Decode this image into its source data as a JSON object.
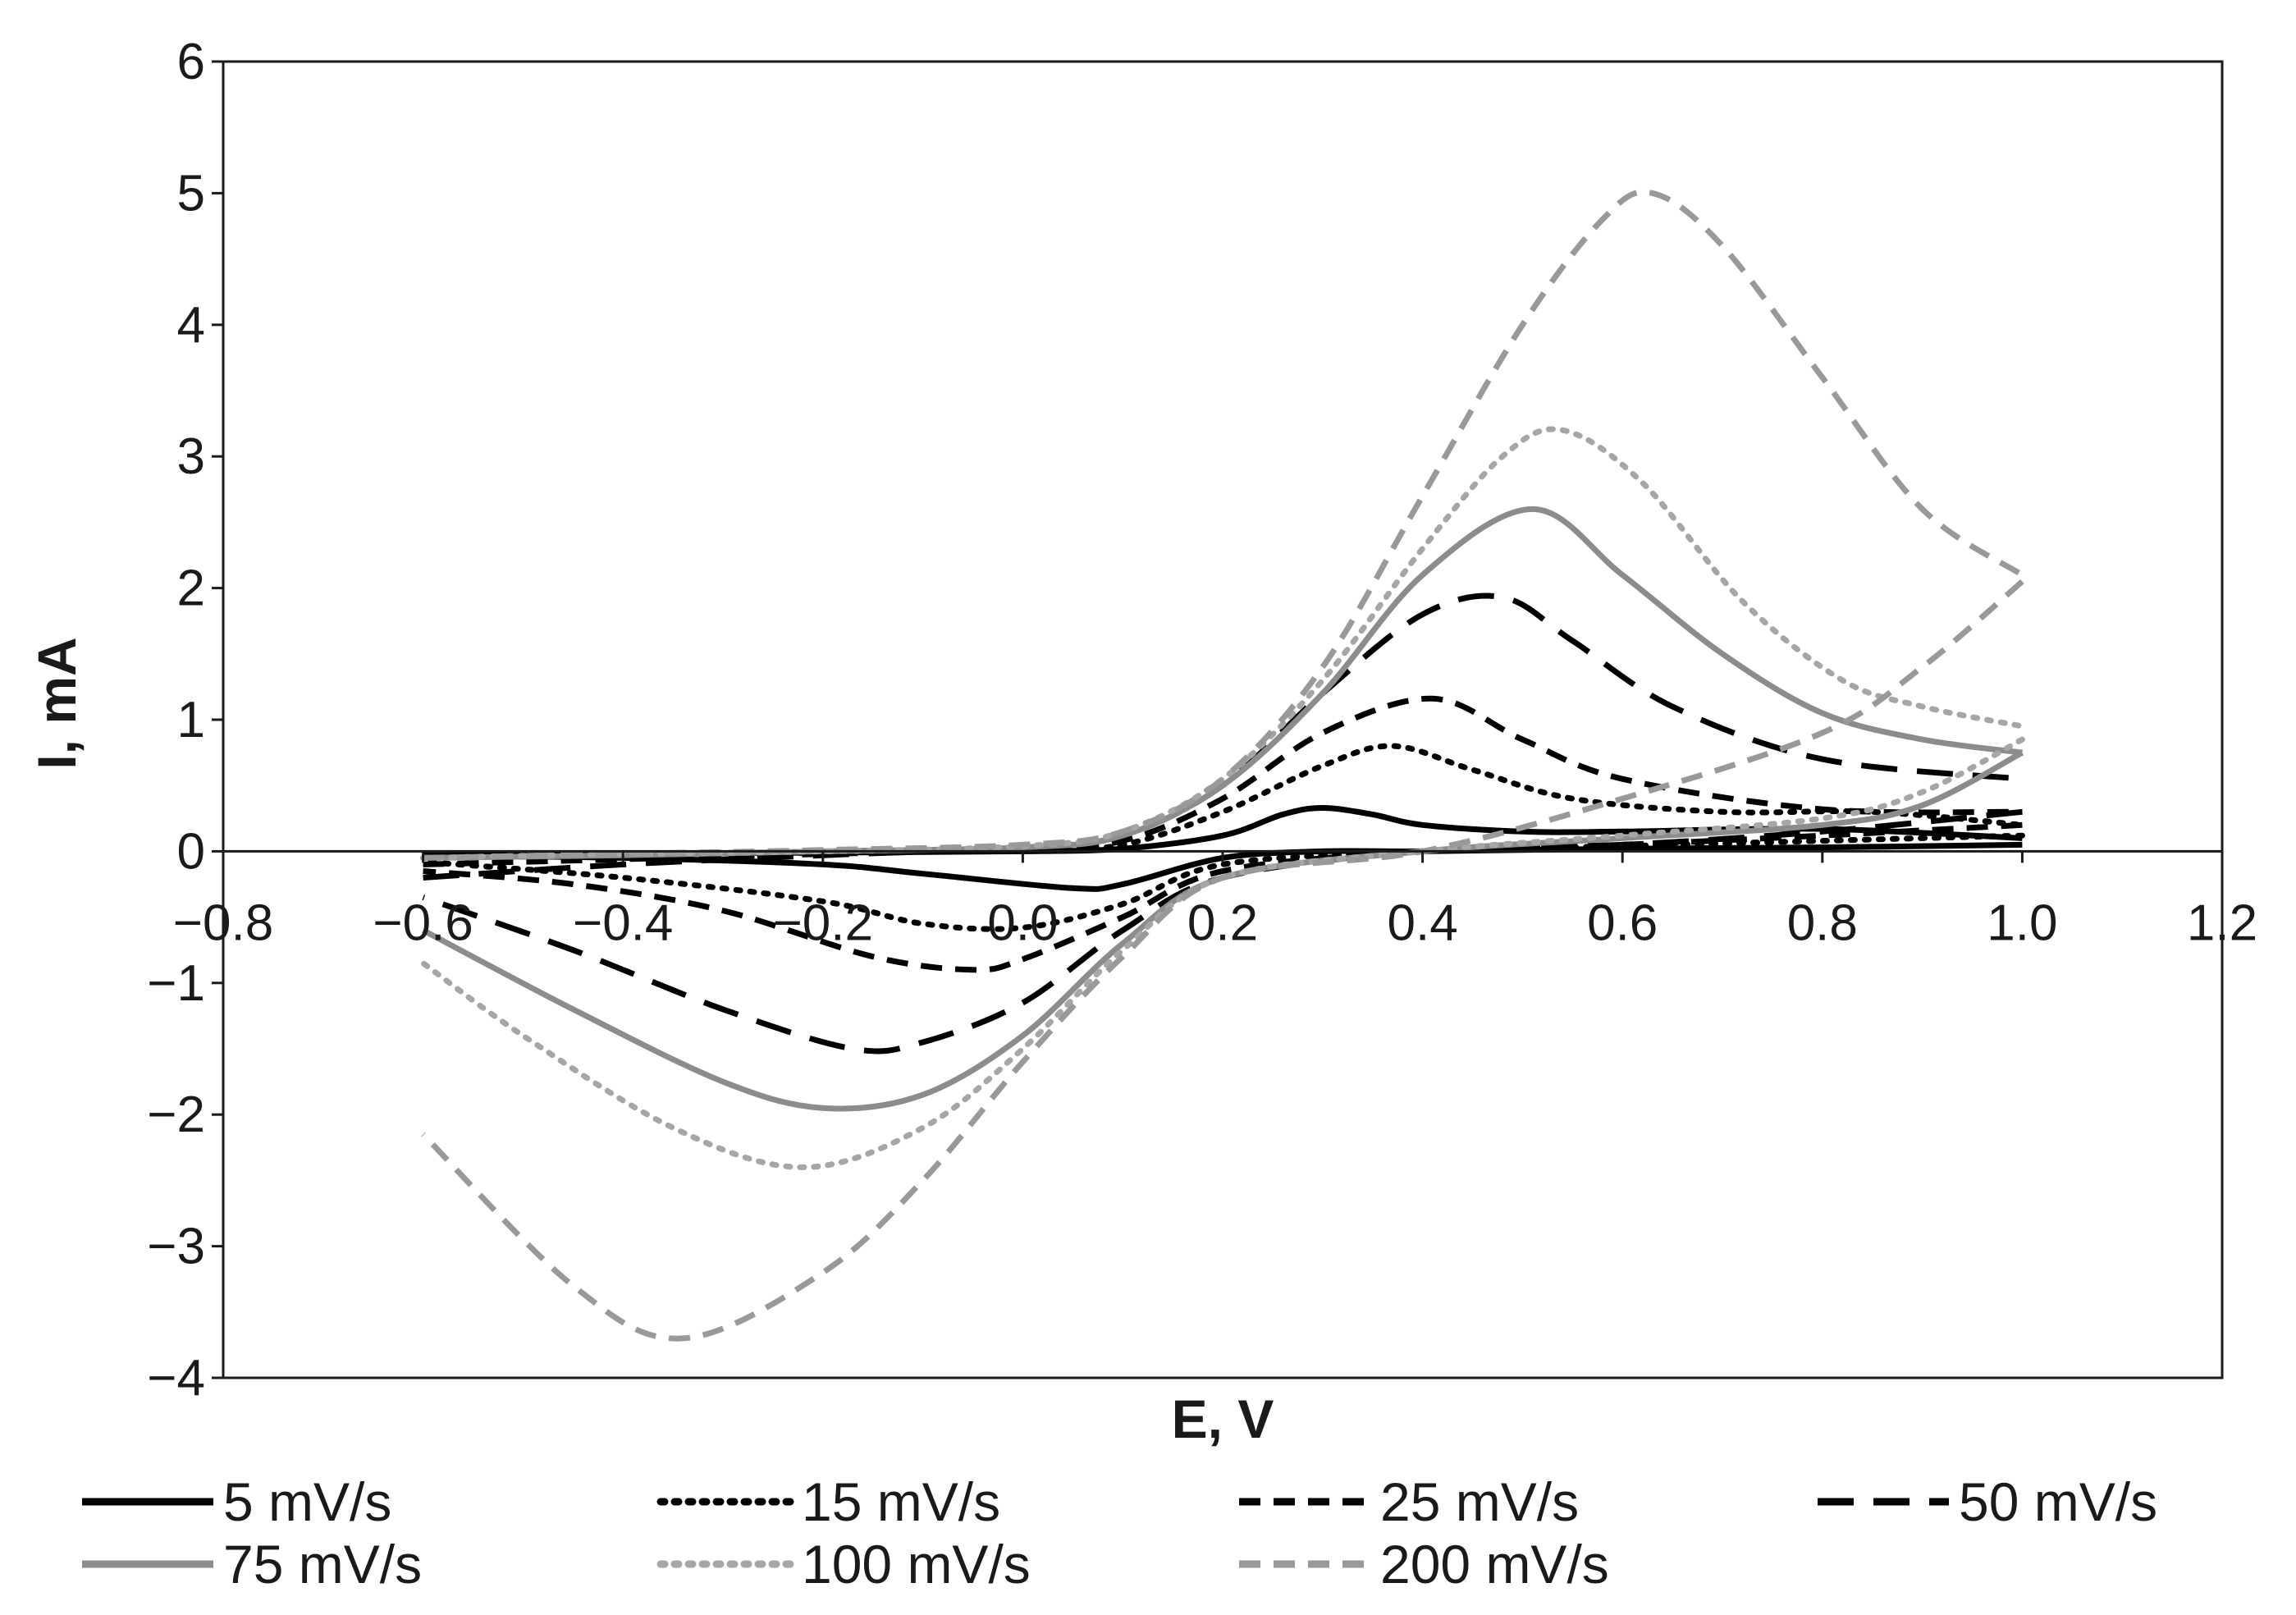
{
  "chart_data": {
    "type": "line",
    "title": "",
    "xlabel": "E, V",
    "ylabel": "I, mA",
    "xlim": [
      -0.8,
      1.2
    ],
    "ylim": [
      -4,
      6
    ],
    "xticks": [
      -0.8,
      -0.6,
      -0.4,
      -0.2,
      0.0,
      0.2,
      0.4,
      0.6,
      0.8,
      1.0,
      1.2
    ],
    "xtick_labels": [
      "−0.8",
      "−0.6",
      "−0.4",
      "−0.2",
      "0.0",
      "0.2",
      "0.4",
      "0.6",
      "0.8",
      "1.0",
      "1.2"
    ],
    "yticks": [
      -4,
      -3,
      -2,
      -1,
      0,
      1,
      2,
      3,
      4,
      5,
      6
    ],
    "ytick_labels": [
      "−4",
      "−3",
      "−2",
      "−1",
      "0",
      "1",
      "2",
      "3",
      "4",
      "5",
      "6"
    ],
    "grid": false,
    "legend_position": "bottom",
    "series": [
      {
        "name": "5 mV/s",
        "color": "#000000",
        "dash": "solid",
        "anodic": [
          [
            -0.6,
            -0.03
          ],
          [
            -0.4,
            -0.02
          ],
          [
            -0.2,
            -0.01
          ],
          [
            0.0,
            0.0
          ],
          [
            0.1,
            0.02
          ],
          [
            0.2,
            0.12
          ],
          [
            0.26,
            0.28
          ],
          [
            0.3,
            0.33
          ],
          [
            0.35,
            0.28
          ],
          [
            0.4,
            0.2
          ],
          [
            0.5,
            0.15
          ],
          [
            0.6,
            0.15
          ],
          [
            0.8,
            0.17
          ],
          [
            1.0,
            0.1
          ]
        ],
        "cathodic": [
          [
            1.0,
            0.05
          ],
          [
            0.8,
            0.03
          ],
          [
            0.6,
            0.02
          ],
          [
            0.4,
            0.0
          ],
          [
            0.3,
            0.0
          ],
          [
            0.2,
            -0.05
          ],
          [
            0.1,
            -0.25
          ],
          [
            0.05,
            -0.28
          ],
          [
            -0.1,
            -0.17
          ],
          [
            -0.2,
            -0.1
          ],
          [
            -0.4,
            -0.05
          ],
          [
            -0.6,
            -0.03
          ]
        ]
      },
      {
        "name": "15 mV/s",
        "color": "#000000",
        "dash": "dot",
        "anodic": [
          [
            -0.6,
            -0.05
          ],
          [
            -0.4,
            -0.03
          ],
          [
            -0.2,
            -0.01
          ],
          [
            0.0,
            0.01
          ],
          [
            0.1,
            0.05
          ],
          [
            0.2,
            0.3
          ],
          [
            0.3,
            0.65
          ],
          [
            0.37,
            0.8
          ],
          [
            0.45,
            0.62
          ],
          [
            0.55,
            0.4
          ],
          [
            0.7,
            0.3
          ],
          [
            0.85,
            0.3
          ],
          [
            1.0,
            0.2
          ]
        ],
        "cathodic": [
          [
            1.0,
            0.12
          ],
          [
            0.8,
            0.08
          ],
          [
            0.6,
            0.04
          ],
          [
            0.4,
            0.0
          ],
          [
            0.2,
            -0.1
          ],
          [
            0.1,
            -0.4
          ],
          [
            0.0,
            -0.58
          ],
          [
            -0.1,
            -0.55
          ],
          [
            -0.2,
            -0.38
          ],
          [
            -0.4,
            -0.2
          ],
          [
            -0.6,
            -0.08
          ]
        ]
      },
      {
        "name": "25 mV/s",
        "color": "#000000",
        "dash": "dash",
        "anodic": [
          [
            -0.6,
            -0.1
          ],
          [
            -0.4,
            -0.06
          ],
          [
            -0.2,
            -0.02
          ],
          [
            0.0,
            0.02
          ],
          [
            0.1,
            0.08
          ],
          [
            0.2,
            0.4
          ],
          [
            0.3,
            0.9
          ],
          [
            0.41,
            1.16
          ],
          [
            0.5,
            0.85
          ],
          [
            0.6,
            0.55
          ],
          [
            0.8,
            0.32
          ],
          [
            1.0,
            0.3
          ]
        ],
        "cathodic": [
          [
            1.0,
            0.2
          ],
          [
            0.8,
            0.12
          ],
          [
            0.6,
            0.05
          ],
          [
            0.4,
            0.0
          ],
          [
            0.2,
            -0.15
          ],
          [
            0.1,
            -0.5
          ],
          [
            0.0,
            -0.82
          ],
          [
            -0.05,
            -0.9
          ],
          [
            -0.15,
            -0.8
          ],
          [
            -0.3,
            -0.45
          ],
          [
            -0.45,
            -0.25
          ],
          [
            -0.6,
            -0.15
          ]
        ]
      },
      {
        "name": "50 mV/s",
        "color": "#000000",
        "dash": "longdash",
        "anodic": [
          [
            -0.6,
            -0.2
          ],
          [
            -0.4,
            -0.1
          ],
          [
            -0.2,
            -0.03
          ],
          [
            0.0,
            0.03
          ],
          [
            0.1,
            0.12
          ],
          [
            0.2,
            0.5
          ],
          [
            0.3,
            1.2
          ],
          [
            0.4,
            1.8
          ],
          [
            0.48,
            1.93
          ],
          [
            0.55,
            1.6
          ],
          [
            0.65,
            1.1
          ],
          [
            0.8,
            0.7
          ],
          [
            1.0,
            0.55
          ]
        ],
        "cathodic": [
          [
            1.0,
            0.3
          ],
          [
            0.8,
            0.15
          ],
          [
            0.6,
            0.05
          ],
          [
            0.4,
            0.0
          ],
          [
            0.2,
            -0.2
          ],
          [
            0.1,
            -0.6
          ],
          [
            0.0,
            -1.15
          ],
          [
            -0.1,
            -1.45
          ],
          [
            -0.17,
            -1.5
          ],
          [
            -0.3,
            -1.2
          ],
          [
            -0.45,
            -0.75
          ],
          [
            -0.6,
            -0.35
          ]
        ]
      },
      {
        "name": "75 mV/s",
        "color": "#8c8c8c",
        "dash": "solid",
        "anodic": [
          [
            -0.6,
            -0.05
          ],
          [
            -0.4,
            -0.03
          ],
          [
            -0.2,
            0.0
          ],
          [
            0.0,
            0.03
          ],
          [
            0.1,
            0.12
          ],
          [
            0.2,
            0.5
          ],
          [
            0.3,
            1.2
          ],
          [
            0.4,
            2.1
          ],
          [
            0.51,
            2.6
          ],
          [
            0.6,
            2.1
          ],
          [
            0.7,
            1.5
          ],
          [
            0.8,
            1.05
          ],
          [
            0.9,
            0.85
          ],
          [
            1.0,
            0.75
          ]
        ],
        "cathodic": [
          [
            1.0,
            0.75
          ],
          [
            0.9,
            0.35
          ],
          [
            0.8,
            0.2
          ],
          [
            0.6,
            0.1
          ],
          [
            0.4,
            0.0
          ],
          [
            0.2,
            -0.2
          ],
          [
            0.1,
            -0.7
          ],
          [
            0.0,
            -1.4
          ],
          [
            -0.1,
            -1.85
          ],
          [
            -0.2,
            -1.95
          ],
          [
            -0.3,
            -1.75
          ],
          [
            -0.45,
            -1.2
          ],
          [
            -0.6,
            -0.6
          ]
        ]
      },
      {
        "name": "100 mV/s",
        "color": "#a6a6a6",
        "dash": "dot",
        "anodic": [
          [
            -0.6,
            -0.05
          ],
          [
            -0.4,
            -0.02
          ],
          [
            -0.2,
            0.0
          ],
          [
            0.0,
            0.04
          ],
          [
            0.1,
            0.15
          ],
          [
            0.2,
            0.55
          ],
          [
            0.3,
            1.3
          ],
          [
            0.4,
            2.3
          ],
          [
            0.48,
            3.0
          ],
          [
            0.54,
            3.2
          ],
          [
            0.62,
            2.8
          ],
          [
            0.72,
            1.9
          ],
          [
            0.82,
            1.3
          ],
          [
            0.9,
            1.1
          ],
          [
            1.0,
            0.95
          ]
        ],
        "cathodic": [
          [
            1.0,
            0.85
          ],
          [
            0.9,
            0.45
          ],
          [
            0.8,
            0.25
          ],
          [
            0.6,
            0.12
          ],
          [
            0.4,
            0.0
          ],
          [
            0.2,
            -0.2
          ],
          [
            0.1,
            -0.75
          ],
          [
            0.0,
            -1.5
          ],
          [
            -0.1,
            -2.1
          ],
          [
            -0.22,
            -2.4
          ],
          [
            -0.35,
            -2.1
          ],
          [
            -0.5,
            -1.4
          ],
          [
            -0.6,
            -0.85
          ]
        ]
      },
      {
        "name": "200 mV/s",
        "color": "#999999",
        "dash": "dash",
        "anodic": [
          [
            -0.6,
            -0.05
          ],
          [
            -0.4,
            -0.02
          ],
          [
            -0.2,
            0.01
          ],
          [
            0.0,
            0.05
          ],
          [
            0.1,
            0.15
          ],
          [
            0.2,
            0.55
          ],
          [
            0.3,
            1.4
          ],
          [
            0.4,
            2.7
          ],
          [
            0.5,
            4.0
          ],
          [
            0.58,
            4.8
          ],
          [
            0.63,
            5.0
          ],
          [
            0.7,
            4.6
          ],
          [
            0.8,
            3.6
          ],
          [
            0.9,
            2.6
          ],
          [
            1.0,
            2.1
          ]
        ],
        "cathodic": [
          [
            1.0,
            2.05
          ],
          [
            0.9,
            1.4
          ],
          [
            0.8,
            0.9
          ],
          [
            0.6,
            0.4
          ],
          [
            0.4,
            0.0
          ],
          [
            0.2,
            -0.2
          ],
          [
            0.1,
            -0.8
          ],
          [
            0.0,
            -1.6
          ],
          [
            -0.1,
            -2.5
          ],
          [
            -0.2,
            -3.2
          ],
          [
            -0.34,
            -3.7
          ],
          [
            -0.45,
            -3.3
          ],
          [
            -0.6,
            -2.15
          ]
        ]
      }
    ]
  }
}
